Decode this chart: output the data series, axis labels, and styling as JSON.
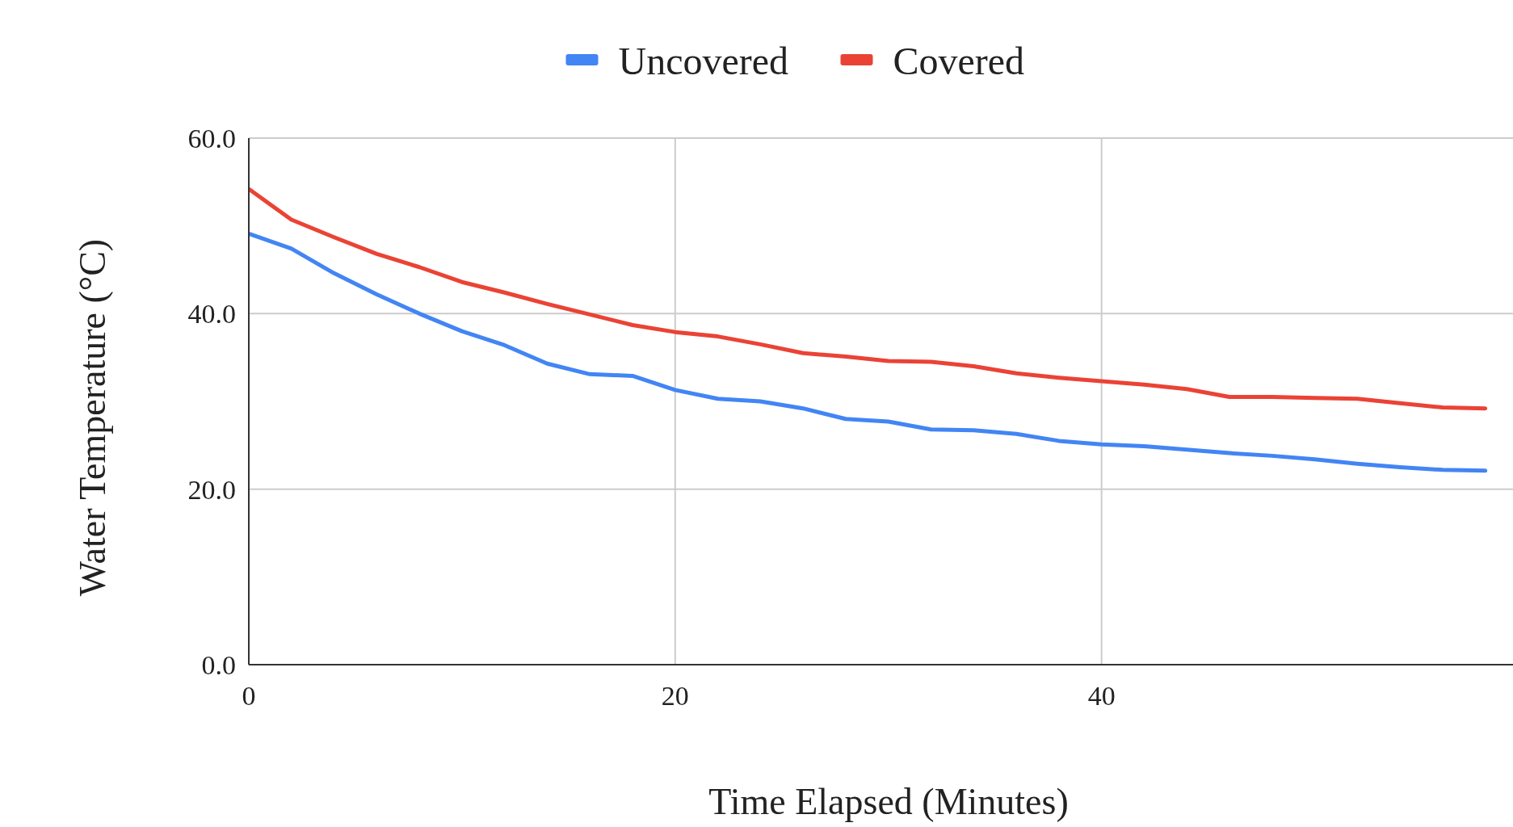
{
  "chart_data": {
    "type": "line",
    "xlabel": "Time Elapsed (Minutes)",
    "ylabel": "Water Temperature (°C)",
    "x": [
      0,
      2,
      4,
      6,
      8,
      10,
      12,
      14,
      16,
      18,
      20,
      22,
      24,
      26,
      28,
      30,
      32,
      34,
      36,
      38,
      40,
      42,
      44,
      46,
      48,
      50,
      52,
      54,
      56,
      58
    ],
    "series": [
      {
        "name": "Uncovered",
        "color": "#4285f4",
        "values": [
          49.1,
          47.4,
          44.6,
          42.2,
          40.0,
          38.0,
          36.4,
          34.3,
          33.1,
          32.9,
          31.3,
          30.3,
          30.0,
          29.2,
          28.0,
          27.7,
          26.8,
          26.7,
          26.3,
          25.5,
          25.1,
          24.9,
          24.5,
          24.1,
          23.8,
          23.4,
          22.9,
          22.5,
          22.2,
          22.1
        ]
      },
      {
        "name": "Covered",
        "color": "#ea4335",
        "values": [
          54.2,
          50.7,
          48.7,
          46.8,
          45.3,
          43.6,
          42.4,
          41.1,
          39.9,
          38.7,
          37.9,
          37.4,
          36.5,
          35.5,
          35.1,
          34.6,
          34.5,
          34.0,
          33.2,
          32.7,
          32.3,
          31.9,
          31.4,
          30.5,
          30.5,
          30.4,
          30.3,
          29.8,
          29.3,
          29.2
        ]
      }
    ],
    "xlim": [
      0,
      59.3
    ],
    "xticks": [
      0,
      20,
      40
    ],
    "ylim": [
      0,
      60
    ],
    "yticks": [
      {
        "value": 0,
        "label": "0.0"
      },
      {
        "value": 20,
        "label": "20.0"
      },
      {
        "value": 40,
        "label": "40.0"
      },
      {
        "value": 60,
        "label": "60.0"
      }
    ],
    "grid": true,
    "legend": "top",
    "marker": "none",
    "line_style": "solid"
  }
}
